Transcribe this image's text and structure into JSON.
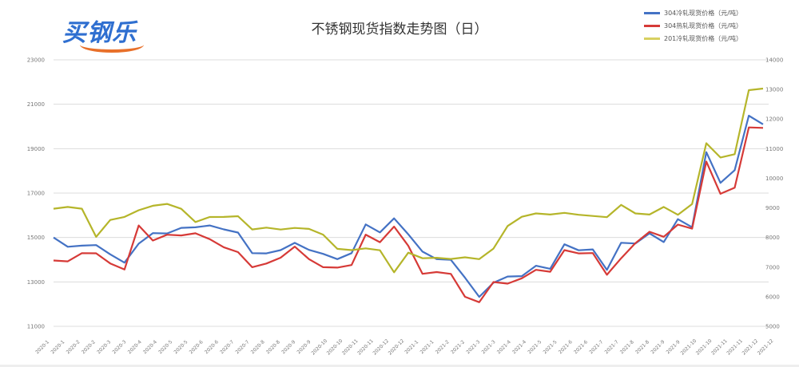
{
  "logo": {
    "text": "买钢乐"
  },
  "chart_data": {
    "type": "line",
    "title": "不锈钢现货指数走势图（日）",
    "xlabel": "",
    "ylabel": "",
    "y_left": {
      "ticks": [
        11000,
        13000,
        15000,
        17000,
        19000,
        21000,
        23000
      ],
      "range": [
        11000,
        23000
      ]
    },
    "y_right": {
      "ticks": [
        5000,
        6000,
        7000,
        8000,
        9000,
        10000,
        11000,
        12000,
        13000,
        14000
      ],
      "range": [
        5000,
        14000
      ]
    },
    "grid": true,
    "legend_position": "top-right",
    "x_tick_labels": [
      "2020-1",
      "2020-1",
      "2020-2",
      "2020-2",
      "2020-3",
      "2020-3",
      "2020-4",
      "2020-4",
      "2020-5",
      "2020-5",
      "2020-6",
      "2020-6",
      "2020-7",
      "2020-7",
      "2020-8",
      "2020-8",
      "2020-9",
      "2020-9",
      "2020-10",
      "2020-10",
      "2020-11",
      "2020-11",
      "2020-12",
      "2020-12",
      "2021-1",
      "2021-1",
      "2021-2",
      "2021-2",
      "2021-3",
      "2021-3",
      "2021-4",
      "2021-4",
      "2021-5",
      "2021-5",
      "2021-6",
      "2021-6",
      "2021-7",
      "2021-7",
      "2021-8",
      "2021-8",
      "2021-9",
      "2021-9",
      "2021-10",
      "2021-10",
      "2021-11",
      "2021-11",
      "2021-12",
      "2021-12"
    ],
    "series": [
      {
        "name": "304冷轧现货价格（元/吨）",
        "axis": "left",
        "color": "#4472c4",
        "x": [
          0,
          2,
          4,
          6,
          8,
          10,
          12,
          14,
          16,
          18,
          20,
          22,
          24,
          26,
          28,
          30,
          32,
          34,
          36,
          38,
          40,
          42,
          44,
          46,
          48,
          50,
          52,
          54,
          56,
          58,
          60,
          62,
          64,
          66,
          68,
          70,
          72,
          74,
          76,
          78,
          80,
          82,
          84,
          86,
          88,
          90,
          92,
          94,
          96,
          98,
          100
        ],
        "values": [
          15000,
          14600,
          14600,
          14700,
          14200,
          13900,
          14700,
          15200,
          15200,
          15400,
          15500,
          15500,
          15400,
          15200,
          14300,
          14300,
          14400,
          14800,
          14400,
          14300,
          14000,
          14300,
          15600,
          15200,
          15900,
          15100,
          14400,
          14000,
          14000,
          13200,
          12300,
          13000,
          13200,
          13300,
          13700,
          13600,
          14700,
          14400,
          14500,
          13500,
          14800,
          14700,
          15200,
          14800,
          15800,
          15500,
          18800,
          17500,
          18000,
          20500,
          20100
        ]
      },
      {
        "name": "304热轧现货价格（元/吨）",
        "axis": "left",
        "color": "#d63a37",
        "x": [
          0,
          2,
          4,
          6,
          8,
          10,
          12,
          14,
          16,
          18,
          20,
          22,
          24,
          26,
          28,
          30,
          32,
          34,
          36,
          38,
          40,
          42,
          44,
          46,
          48,
          50,
          52,
          54,
          56,
          58,
          60,
          62,
          64,
          66,
          68,
          70,
          72,
          74,
          76,
          78,
          80,
          82,
          84,
          86,
          88,
          90,
          92,
          94,
          96,
          98,
          100
        ],
        "values": [
          14000,
          13900,
          14300,
          14300,
          13800,
          13600,
          15500,
          14900,
          15100,
          15100,
          15200,
          14900,
          14600,
          14300,
          13700,
          13800,
          14100,
          14600,
          14000,
          13700,
          13600,
          13800,
          15100,
          14800,
          15500,
          14600,
          13400,
          13400,
          13400,
          12300,
          12100,
          13000,
          12900,
          13200,
          13500,
          13500,
          14400,
          14300,
          14300,
          13300,
          14100,
          14700,
          15300,
          15000,
          15600,
          15400,
          18400,
          17000,
          17200,
          20000,
          19900
        ]
      },
      {
        "name": "201冷轧现货价格（元/吨）",
        "axis": "right",
        "color": "#b5b52a",
        "x": [
          0,
          2,
          4,
          6,
          8,
          10,
          12,
          14,
          16,
          18,
          20,
          22,
          24,
          26,
          28,
          30,
          32,
          34,
          36,
          38,
          40,
          42,
          44,
          46,
          48,
          50,
          52,
          54,
          56,
          58,
          60,
          62,
          64,
          66,
          68,
          70,
          72,
          74,
          76,
          78,
          80,
          82,
          84,
          86,
          88,
          90,
          92,
          94,
          96,
          98,
          100
        ],
        "values": [
          9000,
          9000,
          9000,
          8000,
          8600,
          8700,
          8900,
          9100,
          9100,
          9000,
          8500,
          8700,
          8700,
          8700,
          8300,
          8300,
          8300,
          8300,
          8300,
          8100,
          7600,
          7600,
          7600,
          7600,
          6800,
          7500,
          7300,
          7300,
          7300,
          7300,
          7300,
          7600,
          8400,
          8700,
          8800,
          8800,
          8800,
          8800,
          8700,
          8700,
          9100,
          8800,
          8800,
          9000,
          8800,
          9100,
          11200,
          10700,
          10800,
          13000,
          13000
        ]
      }
    ]
  }
}
